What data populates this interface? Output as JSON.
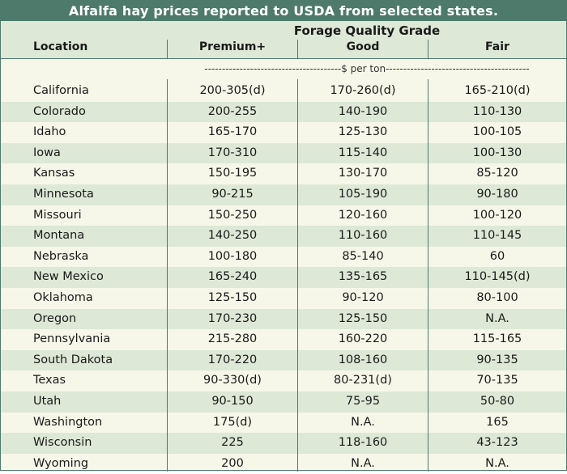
{
  "table": {
    "title": "Alfalfa hay prices reported to USDA from selected states.",
    "header": {
      "location": "Location",
      "group": "Forage Quality Grade",
      "columns": [
        "Premium+",
        "Good",
        "Fair"
      ]
    },
    "unit_label": "---------------------------------------$ per ton-----------------------------------------",
    "rows": [
      [
        "California",
        "200-305(d)",
        "170-260(d)",
        "165-210(d)"
      ],
      [
        "Colorado",
        "200-255",
        "140-190",
        "110-130"
      ],
      [
        "Idaho",
        "165-170",
        "125-130",
        "100-105"
      ],
      [
        "Iowa",
        "170-310",
        "115-140",
        "100-130"
      ],
      [
        "Kansas",
        "150-195",
        "130-170",
        "85-120"
      ],
      [
        "Minnesota",
        "90-215",
        "105-190",
        "90-180"
      ],
      [
        "Missouri",
        "150-250",
        "120-160",
        "100-120"
      ],
      [
        "Montana",
        "140-250",
        "110-160",
        "110-145"
      ],
      [
        "Nebraska",
        "100-180",
        "85-140",
        "60"
      ],
      [
        "New Mexico",
        "165-240",
        "135-165",
        "110-145(d)"
      ],
      [
        "Oklahoma",
        "125-150",
        "90-120",
        "80-100"
      ],
      [
        "Oregon",
        "170-230",
        "125-150",
        "N.A."
      ],
      [
        "Pennsylvania",
        "215-280",
        "160-220",
        "115-165"
      ],
      [
        "South Dakota",
        "170-220",
        "108-160",
        "90-135"
      ],
      [
        "Texas",
        "90-330(d)",
        "80-231(d)",
        "70-135"
      ],
      [
        "Utah",
        "90-150",
        "75-95",
        "50-80"
      ],
      [
        "Washington",
        "175(d)",
        "N.A.",
        "165"
      ],
      [
        "Wisconsin",
        "225",
        "118-160",
        "43-123"
      ],
      [
        "Wyoming",
        "200",
        "N.A.",
        "N.A."
      ]
    ]
  },
  "colors": {
    "title_bg": "#4d7a6b",
    "band": "#dde8d6",
    "base": "#f7f7e9"
  }
}
